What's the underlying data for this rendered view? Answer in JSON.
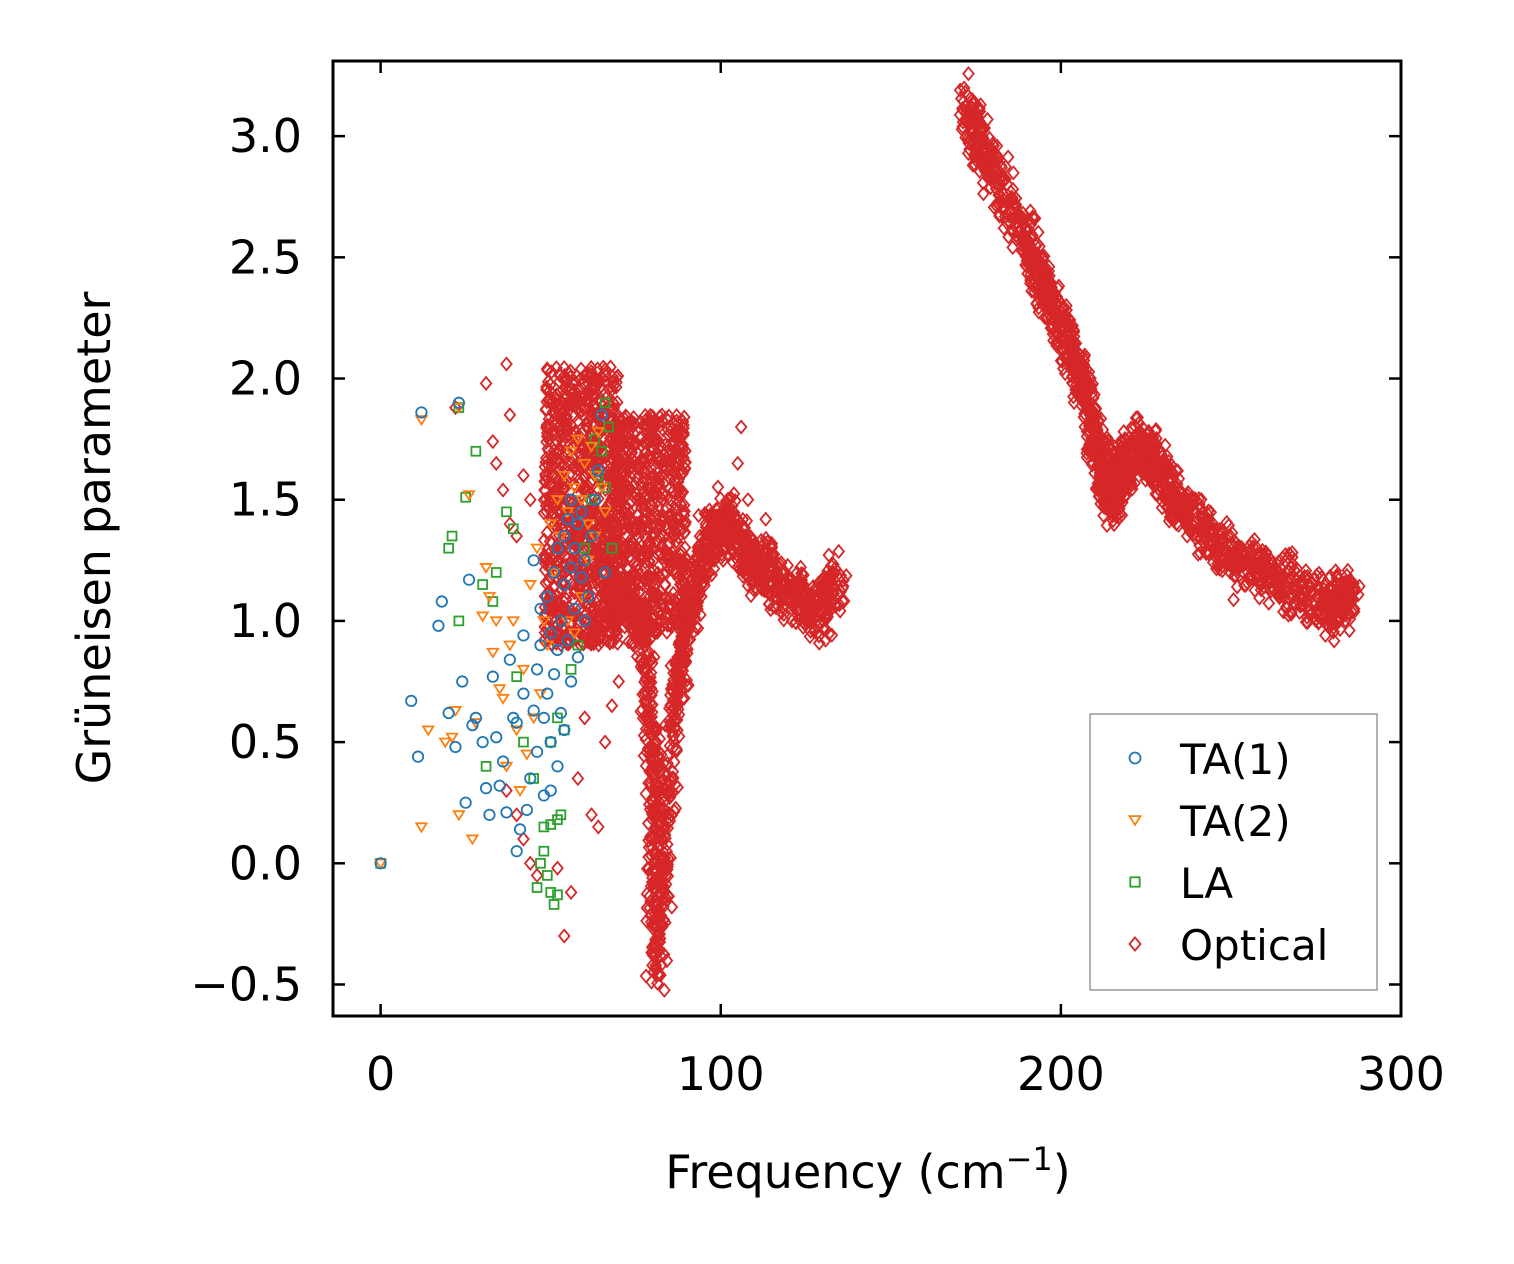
{
  "chart_data": {
    "type": "scatter",
    "title": "",
    "xlabel": "Frequency (cm",
    "xlabel_sup": "−1",
    "xlabel_close": ")",
    "ylabel": "Grüneisen parameter",
    "xlim": [
      -14,
      300
    ],
    "ylim": [
      -0.63,
      3.31
    ],
    "xticks": [
      0,
      100,
      200,
      300
    ],
    "xtick_labels": [
      "0",
      "100",
      "200",
      "300"
    ],
    "yticks": [
      -0.5,
      0.0,
      0.5,
      1.0,
      1.5,
      2.0,
      2.5,
      3.0
    ],
    "ytick_labels": [
      "−0.5",
      "0.0",
      "0.5",
      "1.0",
      "1.5",
      "2.0",
      "2.5",
      "3.0"
    ],
    "grid": false,
    "legend_position": "lower-right",
    "series": [
      {
        "name": "TA(1)",
        "marker": "circle",
        "color": "#1f77b4",
        "points": [
          [
            0,
            0.0
          ],
          [
            12,
            1.86
          ],
          [
            23,
            1.9
          ],
          [
            9,
            0.67
          ],
          [
            11,
            0.44
          ],
          [
            17,
            0.98
          ],
          [
            18,
            1.08
          ],
          [
            20,
            0.62
          ],
          [
            22,
            0.48
          ],
          [
            24,
            0.75
          ],
          [
            25,
            0.25
          ],
          [
            26,
            1.17
          ],
          [
            27,
            0.57
          ],
          [
            28,
            0.6
          ],
          [
            30,
            0.5
          ],
          [
            31,
            0.31
          ],
          [
            32,
            0.2
          ],
          [
            33,
            0.77
          ],
          [
            34,
            0.52
          ],
          [
            35,
            0.32
          ],
          [
            36,
            0.42
          ],
          [
            37,
            0.21
          ],
          [
            38,
            0.84
          ],
          [
            39,
            0.6
          ],
          [
            40,
            0.05
          ],
          [
            40,
            0.58
          ],
          [
            41,
            0.14
          ],
          [
            42,
            0.7
          ],
          [
            42,
            0.94
          ],
          [
            43,
            0.22
          ],
          [
            44,
            0.35
          ],
          [
            45,
            0.63
          ],
          [
            45,
            1.25
          ],
          [
            46,
            0.46
          ],
          [
            46,
            0.8
          ],
          [
            47,
            0.9
          ],
          [
            47,
            1.05
          ],
          [
            48,
            0.6
          ],
          [
            48,
            0.28
          ],
          [
            49,
            1.1
          ],
          [
            49,
            0.7
          ],
          [
            50,
            0.95
          ],
          [
            50,
            0.5
          ],
          [
            51,
            1.2
          ],
          [
            51,
            0.78
          ],
          [
            52,
            0.88
          ],
          [
            52,
            1.3
          ],
          [
            53,
            1.0
          ],
          [
            53,
            0.62
          ],
          [
            54,
            1.15
          ],
          [
            54,
            1.35
          ],
          [
            55,
            1.42
          ],
          [
            55,
            0.92
          ],
          [
            56,
            1.5
          ],
          [
            56,
            1.22
          ],
          [
            57,
            1.05
          ],
          [
            57,
            1.3
          ],
          [
            58,
            0.85
          ],
          [
            58,
            1.4
          ],
          [
            59,
            1.18
          ],
          [
            59,
            1.45
          ],
          [
            60,
            1.0
          ],
          [
            60,
            1.25
          ],
          [
            61,
            1.1
          ],
          [
            62,
            1.35
          ],
          [
            63,
            1.5
          ],
          [
            64,
            1.62
          ],
          [
            65,
            1.85
          ],
          [
            66,
            1.2
          ],
          [
            56,
            0.75
          ],
          [
            54,
            0.55
          ],
          [
            52,
            0.4
          ],
          [
            50,
            0.3
          ]
        ]
      },
      {
        "name": "TA(2)",
        "marker": "triangle",
        "color": "#ff7f0e",
        "points": [
          [
            0,
            0.0
          ],
          [
            12,
            1.83
          ],
          [
            23,
            1.88
          ],
          [
            12,
            0.15
          ],
          [
            14,
            0.55
          ],
          [
            19,
            0.5
          ],
          [
            21,
            0.52
          ],
          [
            22,
            0.63
          ],
          [
            23,
            0.2
          ],
          [
            26,
            1.52
          ],
          [
            27,
            0.1
          ],
          [
            28,
            0.58
          ],
          [
            30,
            1.02
          ],
          [
            31,
            1.22
          ],
          [
            32,
            1.1
          ],
          [
            33,
            0.87
          ],
          [
            34,
            1.0
          ],
          [
            35,
            0.72
          ],
          [
            36,
            0.68
          ],
          [
            37,
            0.4
          ],
          [
            38,
            0.9
          ],
          [
            39,
            1.0
          ],
          [
            40,
            0.55
          ],
          [
            41,
            0.3
          ],
          [
            42,
            0.8
          ],
          [
            43,
            0.45
          ],
          [
            44,
            1.15
          ],
          [
            45,
            0.6
          ],
          [
            46,
            1.3
          ],
          [
            47,
            0.7
          ],
          [
            48,
            1.0
          ],
          [
            49,
            0.9
          ],
          [
            50,
            1.4
          ],
          [
            51,
            1.2
          ],
          [
            52,
            1.5
          ],
          [
            53,
            1.35
          ],
          [
            54,
            1.6
          ],
          [
            55,
            1.45
          ],
          [
            56,
            1.7
          ],
          [
            57,
            1.55
          ],
          [
            58,
            1.75
          ],
          [
            59,
            1.5
          ],
          [
            60,
            1.65
          ],
          [
            61,
            1.4
          ],
          [
            62,
            1.72
          ],
          [
            63,
            1.6
          ],
          [
            64,
            1.78
          ],
          [
            65,
            1.55
          ],
          [
            66,
            1.45
          ],
          [
            55,
            1.0
          ],
          [
            57,
            0.95
          ],
          [
            59,
            1.1
          ],
          [
            61,
            1.25
          ],
          [
            63,
            1.35
          ]
        ]
      },
      {
        "name": "LA",
        "marker": "square",
        "color": "#2ca02c",
        "points": [
          [
            0,
            0.0
          ],
          [
            23,
            1.88
          ],
          [
            20,
            1.3
          ],
          [
            21,
            1.35
          ],
          [
            23,
            1.0
          ],
          [
            25,
            1.51
          ],
          [
            28,
            1.7
          ],
          [
            30,
            1.15
          ],
          [
            31,
            0.4
          ],
          [
            33,
            1.08
          ],
          [
            34,
            1.2
          ],
          [
            37,
            1.45
          ],
          [
            39,
            1.38
          ],
          [
            40,
            0.77
          ],
          [
            42,
            0.5
          ],
          [
            45,
            0.35
          ],
          [
            46,
            -0.1
          ],
          [
            47,
            0.0
          ],
          [
            48,
            0.05
          ],
          [
            49,
            -0.05
          ],
          [
            50,
            -0.12
          ],
          [
            51,
            -0.17
          ],
          [
            52,
            -0.13
          ],
          [
            48,
            0.15
          ],
          [
            50,
            0.16
          ],
          [
            52,
            0.18
          ],
          [
            53,
            0.2
          ],
          [
            50,
            0.5
          ],
          [
            52,
            0.6
          ],
          [
            54,
            0.55
          ],
          [
            56,
            0.8
          ],
          [
            58,
            0.9
          ],
          [
            60,
            1.3
          ],
          [
            62,
            1.5
          ],
          [
            64,
            1.6
          ],
          [
            65,
            1.7
          ],
          [
            66,
            1.9
          ],
          [
            67,
            1.8
          ],
          [
            68,
            1.3
          ],
          [
            66,
            1.55
          ],
          [
            63,
            1.75
          ]
        ]
      },
      {
        "name": "Optical",
        "marker": "diamond",
        "color": "#d62728",
        "generator": "dense-bands",
        "points": [
          [
            22,
            1.88
          ],
          [
            31,
            1.98
          ],
          [
            37,
            2.06
          ],
          [
            38,
            1.85
          ],
          [
            33,
            1.74
          ],
          [
            34,
            1.65
          ],
          [
            36,
            1.54
          ],
          [
            38,
            1.4
          ],
          [
            40,
            1.35
          ],
          [
            42,
            1.6
          ],
          [
            44,
            1.5
          ],
          [
            37,
            0.3
          ],
          [
            40,
            0.2
          ],
          [
            42,
            0.1
          ],
          [
            44,
            0.0
          ],
          [
            46,
            -0.05
          ],
          [
            52,
            -0.02
          ],
          [
            54,
            -0.3
          ],
          [
            56,
            -0.12
          ],
          [
            58,
            0.35
          ],
          [
            60,
            0.6
          ],
          [
            62,
            0.2
          ],
          [
            64,
            0.15
          ],
          [
            66,
            0.5
          ],
          [
            68,
            0.65
          ],
          [
            70,
            0.75
          ],
          [
            106,
            1.8
          ],
          [
            105,
            1.65
          ],
          [
            108,
            1.5
          ]
        ],
        "bands": [
          {
            "x": [
              48,
              70
            ],
            "y": [
              0.9,
              2.05
            ],
            "count": 900
          },
          {
            "x": [
              68,
              90
            ],
            "y": [
              0.95,
              1.85
            ],
            "count": 700
          },
          {
            "curve": [
              [
                66,
                1.05
              ],
              [
                72,
                1.1
              ],
              [
                78,
                0.9
              ],
              [
                81,
                0.3
              ],
              [
                81,
                -0.45
              ]
            ],
            "spread": 0.09,
            "count": 500
          },
          {
            "curve": [
              [
                82,
                -0.3
              ],
              [
                86,
                0.6
              ],
              [
                90,
                1.0
              ],
              [
                96,
                1.3
              ],
              [
                102,
                1.4
              ],
              [
                110,
                1.25
              ],
              [
                118,
                1.15
              ],
              [
                128,
                1.05
              ],
              [
                135,
                1.15
              ]
            ],
            "spread": 0.13,
            "count": 900
          },
          {
            "curve": [
              [
                172,
                3.12
              ],
              [
                180,
                2.85
              ],
              [
                190,
                2.55
              ],
              [
                198,
                2.3
              ],
              [
                206,
                2.0
              ],
              [
                212,
                1.65
              ],
              [
                215,
                1.5
              ],
              [
                218,
                1.65
              ],
              [
                225,
                1.7
              ],
              [
                232,
                1.55
              ],
              [
                240,
                1.4
              ],
              [
                252,
                1.25
              ],
              [
                265,
                1.15
              ],
              [
                278,
                1.08
              ],
              [
                286,
                1.1
              ]
            ],
            "spread": 0.12,
            "count": 1800
          }
        ]
      }
    ]
  }
}
